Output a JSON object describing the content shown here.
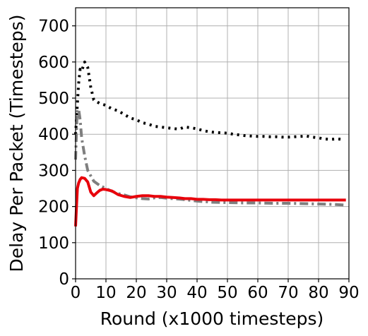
{
  "chart_data": {
    "type": "line",
    "title": "",
    "xlabel": "Round (x1000 timesteps)",
    "ylabel": "Delay Per Packet (Timesteps)",
    "xlim": [
      0,
      90
    ],
    "ylim": [
      0,
      750
    ],
    "xticks": [
      0,
      10,
      20,
      30,
      40,
      50,
      60,
      70,
      80,
      90
    ],
    "yticks": [
      0,
      100,
      200,
      300,
      400,
      500,
      600,
      700
    ],
    "grid": true,
    "series": [
      {
        "color": "#000000",
        "style": "dotted",
        "x": [
          0,
          0.5,
          1,
          1.5,
          2,
          3,
          4,
          5,
          6,
          8,
          10,
          12,
          14,
          16,
          18,
          20,
          22,
          24,
          26,
          28,
          30,
          32,
          34,
          36,
          38,
          40,
          42,
          44,
          46,
          48,
          50,
          52,
          54,
          56,
          58,
          60,
          62,
          64,
          66,
          68,
          70,
          72,
          74,
          76,
          78,
          80,
          82,
          84,
          86,
          88
        ],
        "y": [
          400,
          470,
          540,
          580,
          575,
          600,
          585,
          530,
          495,
          485,
          480,
          470,
          465,
          455,
          445,
          440,
          432,
          428,
          422,
          420,
          418,
          416,
          414,
          420,
          418,
          415,
          410,
          407,
          405,
          404,
          403,
          400,
          398,
          396,
          395,
          394,
          394,
          393,
          393,
          392,
          392,
          393,
          394,
          395,
          392,
          390,
          387,
          386,
          387,
          386
        ]
      },
      {
        "color": "#7f7f7f",
        "style": "dashdot",
        "x": [
          0,
          0.5,
          1,
          1.5,
          2,
          3,
          4,
          5,
          6,
          8,
          10,
          12,
          14,
          16,
          18,
          20,
          22,
          24,
          26,
          28,
          30,
          35,
          40,
          45,
          50,
          55,
          60,
          65,
          70,
          75,
          80,
          85,
          89
        ],
        "y": [
          330,
          460,
          470,
          440,
          390,
          340,
          300,
          285,
          270,
          258,
          250,
          242,
          236,
          232,
          227,
          224,
          222,
          221,
          224,
          225,
          223,
          220,
          215,
          212,
          211,
          210,
          210,
          209,
          209,
          208,
          207,
          206,
          204
        ]
      },
      {
        "color": "#e8000b",
        "style": "solid",
        "x": [
          0,
          0.3,
          0.6,
          1,
          1.5,
          2,
          3,
          4,
          5,
          6,
          7,
          8,
          9,
          10,
          12,
          14,
          16,
          18,
          20,
          22,
          24,
          26,
          28,
          30,
          32,
          34,
          36,
          38,
          40,
          42,
          44,
          46,
          48,
          50,
          55,
          60,
          65,
          70,
          75,
          80,
          85,
          89
        ],
        "y": [
          145,
          200,
          250,
          265,
          275,
          280,
          278,
          268,
          240,
          230,
          238,
          245,
          248,
          247,
          243,
          233,
          228,
          225,
          228,
          230,
          230,
          228,
          228,
          226,
          225,
          224,
          222,
          222,
          220,
          220,
          219,
          219,
          218,
          218,
          218,
          218,
          218,
          218,
          218,
          218,
          218,
          218
        ]
      }
    ]
  }
}
